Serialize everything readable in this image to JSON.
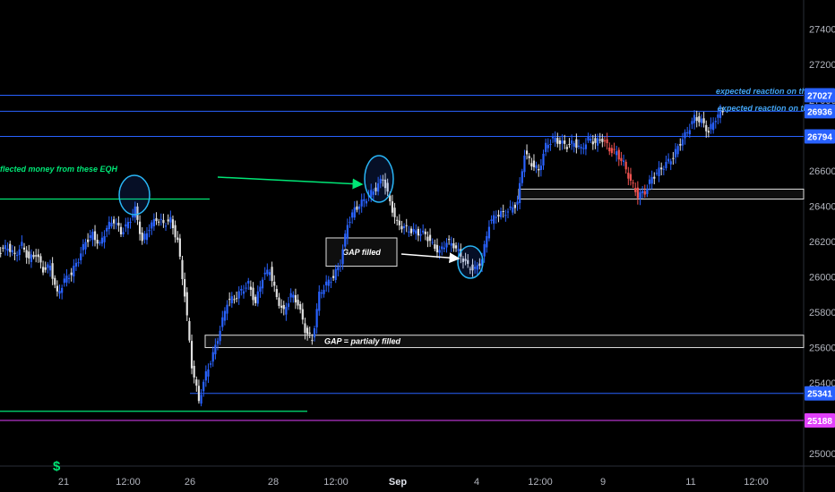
{
  "chart_data": {
    "type": "candlestick",
    "y_axis": {
      "ylim": [
        24930,
        27530
      ],
      "ticks": [
        25000,
        25200,
        25400,
        25600,
        25800,
        26000,
        26200,
        26400,
        26600,
        26800,
        27000,
        27200,
        27400
      ],
      "tick_labels": [
        "25000",
        "25200",
        "25400",
        "25600",
        "25800",
        "26000",
        "26200",
        "26400",
        "26600",
        "26800",
        "27000",
        "27200",
        "27400"
      ]
    },
    "x_axis": {
      "tick_labels": [
        {
          "label": "21",
          "bold": false
        },
        {
          "label": "12:00",
          "bold": false
        },
        {
          "label": "26",
          "bold": false
        },
        {
          "label": "28",
          "bold": false
        },
        {
          "label": "12:00",
          "bold": false
        },
        {
          "label": "Sep",
          "bold": true
        },
        {
          "label": "4",
          "bold": false
        },
        {
          "label": "12:00",
          "bold": false
        },
        {
          "label": "9",
          "bold": false
        },
        {
          "label": "11",
          "bold": false
        },
        {
          "label": "12:00",
          "bold": false
        }
      ]
    },
    "price_lines": [
      {
        "value": 27027,
        "label": "27027",
        "color": "#2962ff"
      },
      {
        "value": 26936,
        "label": "26936",
        "color": "#2962ff"
      },
      {
        "value": 26794,
        "label": "26794",
        "color": "#2962ff"
      },
      {
        "value": 25341,
        "label": "25341",
        "color": "#2962ff"
      },
      {
        "value": 25188,
        "label": "25188",
        "color": "#e040fb"
      }
    ],
    "green_levels": [
      {
        "value": 26440
      },
      {
        "value": 25240
      }
    ],
    "zones": [
      {
        "label": "GAP filled",
        "top": 26220,
        "bottom": 26060
      },
      {
        "label": "GAP = partialy filled",
        "top": 25670,
        "bottom": 25600
      },
      {
        "label": "",
        "top": 26496,
        "bottom": 26440
      }
    ],
    "annotations": [
      {
        "text": "flected money from these EQH",
        "color": "#00e676"
      },
      {
        "text": "expected reaction on this lvl",
        "color": "#42a5f5"
      },
      {
        "text": "expected reaction on this lvl",
        "color": "#42a5f5"
      }
    ],
    "price_path": [
      26150,
      26170,
      26120,
      26180,
      26100,
      26130,
      26040,
      26060,
      25900,
      25980,
      26020,
      26100,
      26200,
      26240,
      26180,
      26280,
      26320,
      26250,
      26300,
      26380,
      26200,
      26280,
      26330,
      26300,
      26320,
      26200,
      25900,
      25500,
      25300,
      25450,
      25560,
      25700,
      25860,
      25880,
      25920,
      25960,
      25850,
      26000,
      26040,
      25880,
      25800,
      25900,
      25850,
      25700,
      25640,
      25900,
      25960,
      26000,
      26080,
      26300,
      26380,
      26420,
      26460,
      26500,
      26560,
      26420,
      26300,
      26280,
      26260,
      26250,
      26240,
      26180,
      26140,
      26200,
      26180,
      26120,
      26060,
      26040,
      26100,
      26300,
      26350,
      26360,
      26380,
      26420,
      26700,
      26640,
      26600,
      26740,
      26780,
      26760,
      26740,
      26760,
      26720,
      26780,
      26760,
      26780,
      26720,
      26700,
      26640,
      26540,
      26460,
      26480,
      26560,
      26600,
      26640,
      26680,
      26760,
      26820,
      26900,
      26880,
      26820,
      26900,
      26940
    ]
  },
  "footer": {
    "currency_symbol": "$"
  }
}
